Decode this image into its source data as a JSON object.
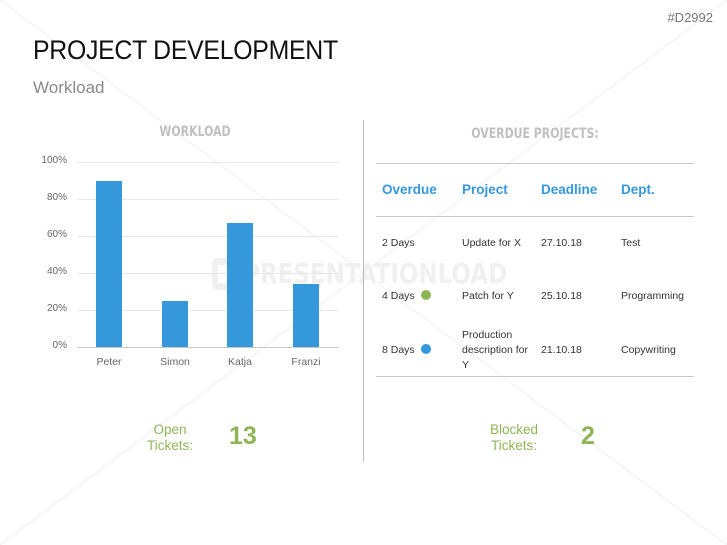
{
  "header": {
    "code": "#D2992",
    "title": "PROJECT DEVELOPMENT",
    "subtitle": "Workload"
  },
  "watermark": "PRESENTATIONLOAD",
  "chart_data": {
    "type": "bar",
    "title": "WORKLOAD",
    "categories": [
      "Peter",
      "Simon",
      "Katja",
      "Franzi"
    ],
    "values": [
      90,
      25,
      67,
      34
    ],
    "xlabel": "",
    "ylabel": "",
    "ylim": [
      0,
      100
    ],
    "yticks": [
      "0%",
      "20%",
      "40%",
      "60%",
      "80%",
      "100%"
    ],
    "value_format": "percent",
    "grid": true,
    "legend": null,
    "bar_color": "#3598db"
  },
  "overdue": {
    "title": "OVERDUE PROJECTS:",
    "columns": [
      "Overdue",
      "Project",
      "Deadline",
      "Dept."
    ],
    "rows": [
      {
        "overdue": "2 Days",
        "status_dot": null,
        "project": "Update for X",
        "deadline": "27.10.18",
        "dept": "Test"
      },
      {
        "overdue": "4 Days",
        "status_dot": "#8db556",
        "project": "Patch for Y",
        "deadline": "25.10.18",
        "dept": "Programming"
      },
      {
        "overdue": "8 Days",
        "status_dot": "#3598db",
        "project": "Production description for Y",
        "deadline": "21.10.18",
        "dept": "Copywriting"
      }
    ]
  },
  "kpis": {
    "open": {
      "label_line1": "Open",
      "label_line2": "Tickets:",
      "value": "13"
    },
    "blocked": {
      "label_line1": "Blocked",
      "label_line2": "Tickets:",
      "value": "2"
    }
  },
  "colors": {
    "accent_blue": "#3598db",
    "accent_green": "#8db556",
    "section_title_gray": "#c0c0c0"
  }
}
